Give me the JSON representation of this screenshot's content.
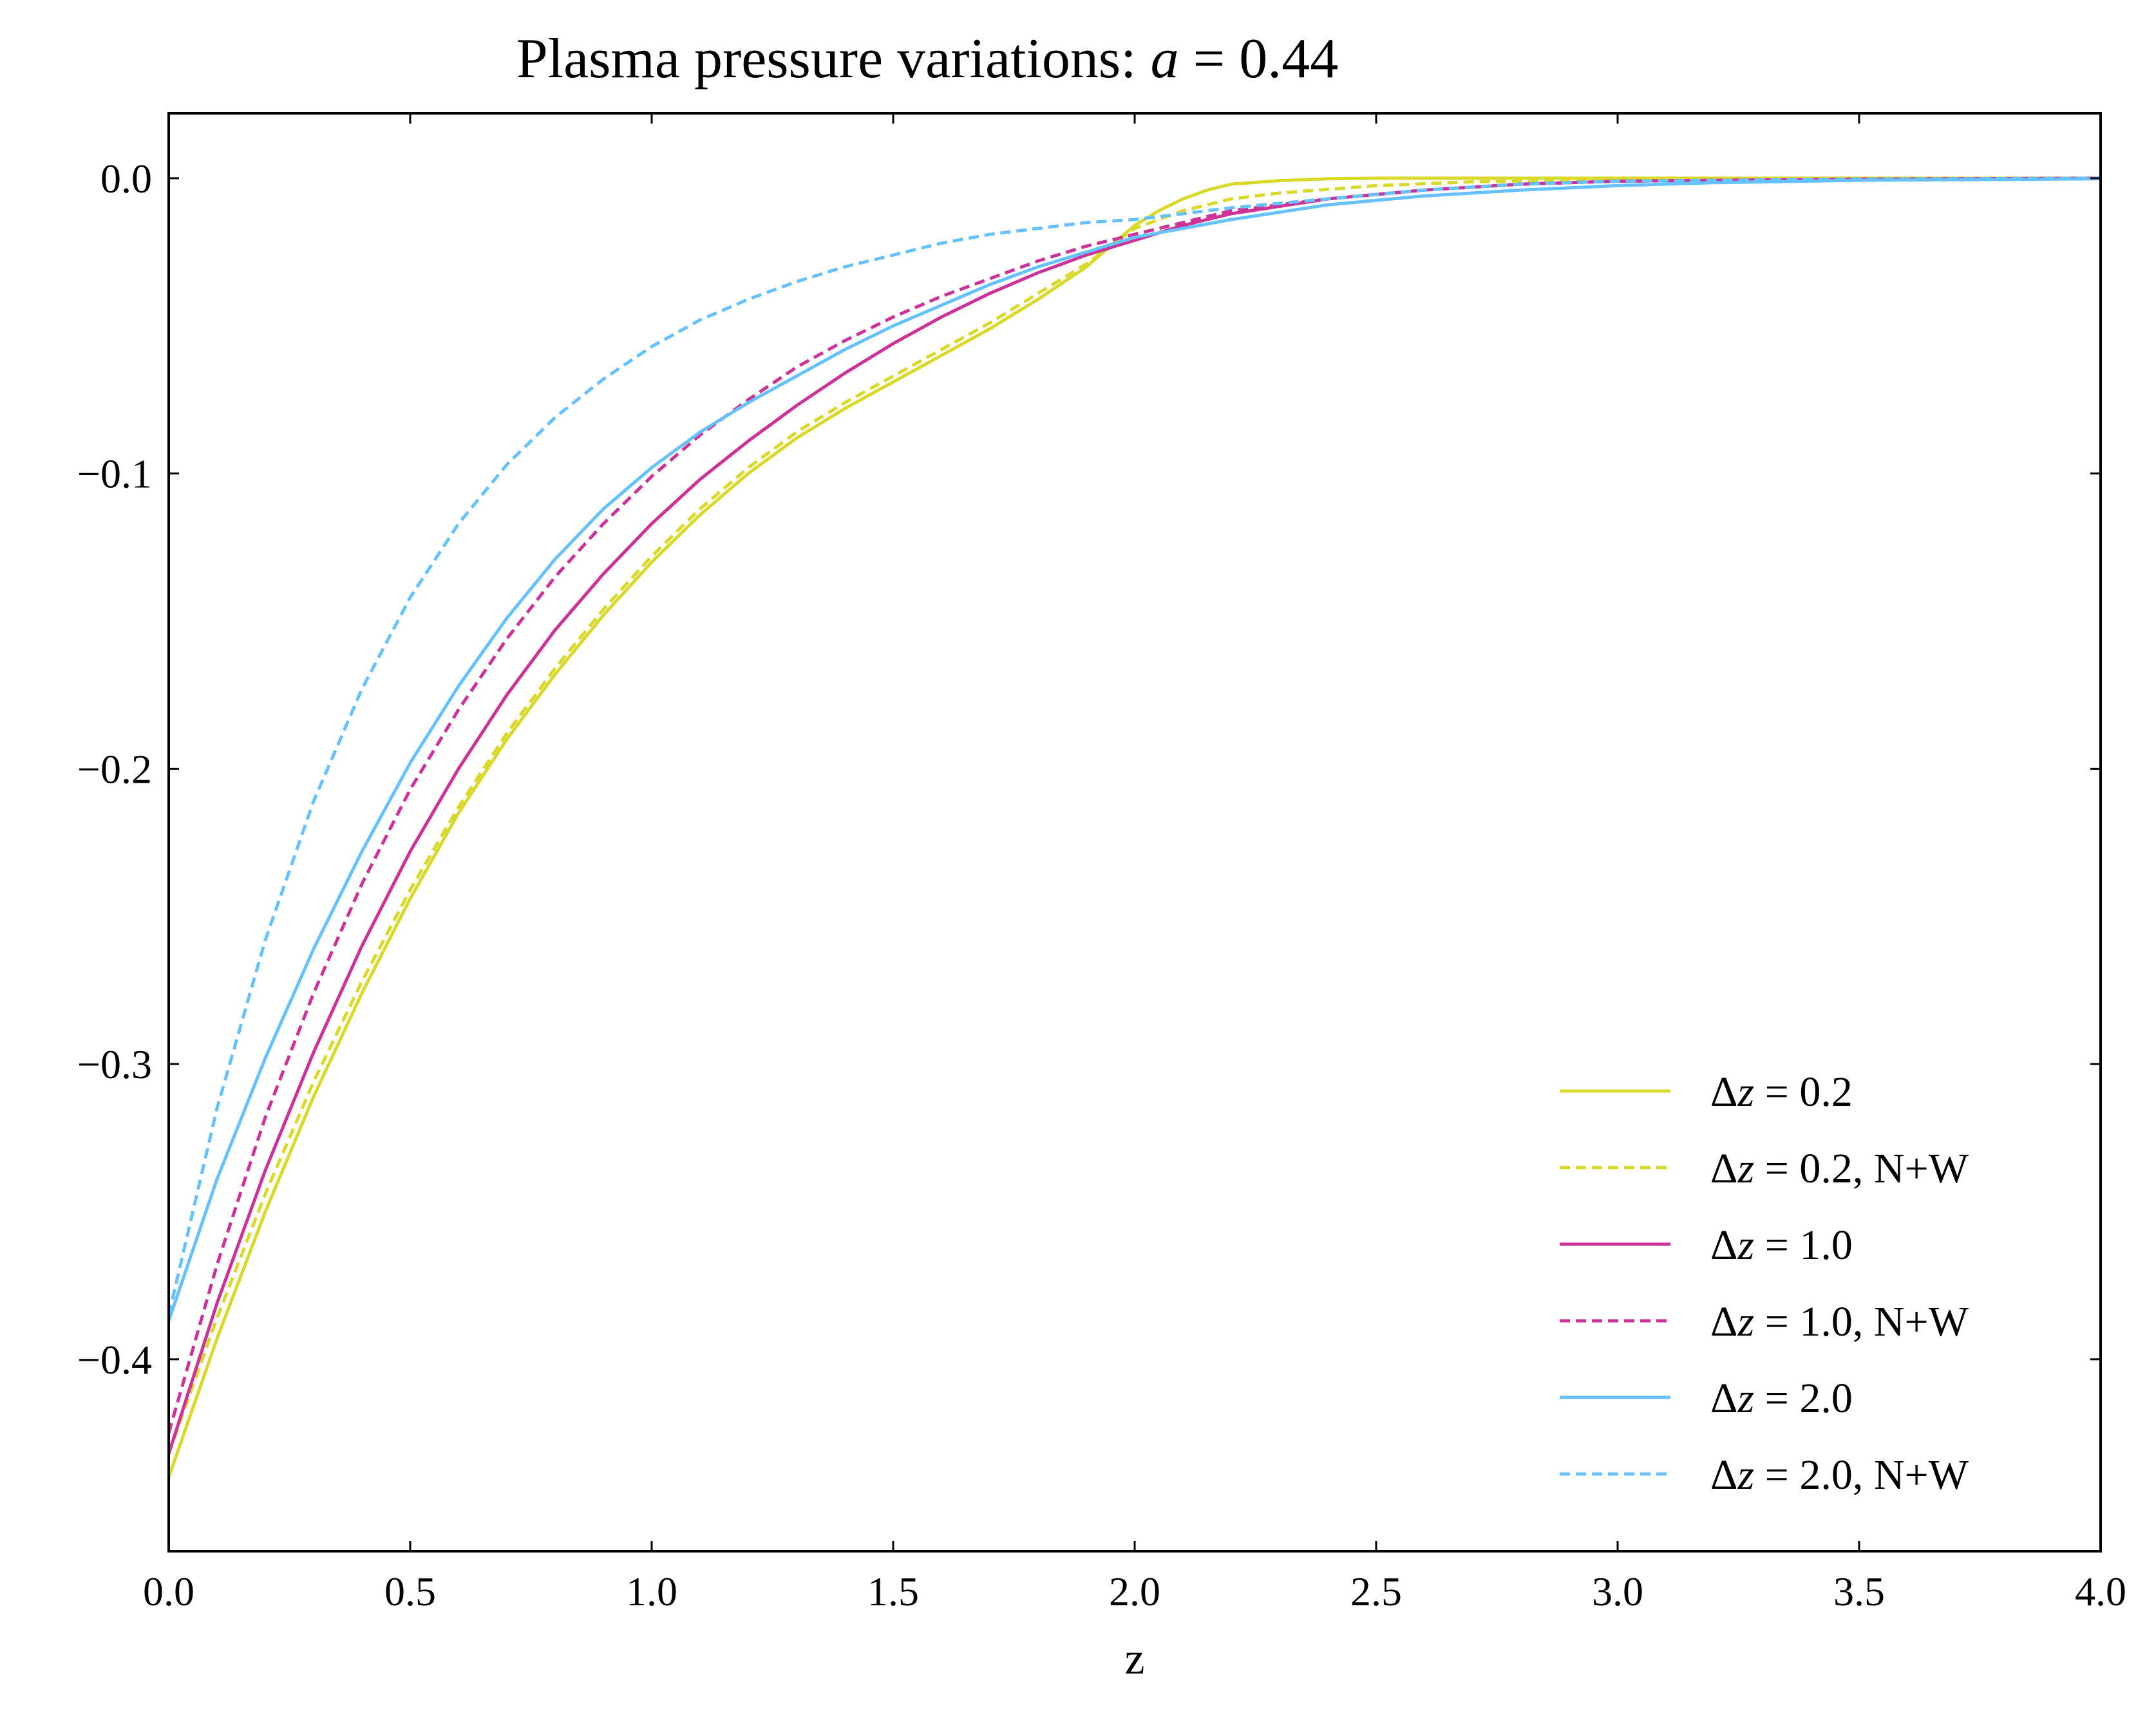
{
  "chart_data": {
    "type": "line",
    "title": "Plasma pressure variations: a = 0.44",
    "title_parts": {
      "prefix": "Plasma pressure variations: ",
      "var": "a",
      "suffix": " = 0.44"
    },
    "xlabel": "z",
    "ylabel": "",
    "xlim": [
      0.0,
      4.0
    ],
    "ylim": [
      -0.465,
      0.022
    ],
    "xticks": [
      0.0,
      0.5,
      1.0,
      1.5,
      2.0,
      2.5,
      3.0,
      3.5,
      4.0
    ],
    "xtick_labels": [
      "0.0",
      "0.5",
      "1.0",
      "1.5",
      "2.0",
      "2.5",
      "3.0",
      "3.5",
      "4.0"
    ],
    "yticks": [
      0.0,
      -0.1,
      -0.2,
      -0.3,
      -0.4
    ],
    "ytick_labels": [
      "0.0",
      "−0.1",
      "−0.2",
      "−0.3",
      "−0.4"
    ],
    "grid": false,
    "legend_position": "bottom-right",
    "series": [
      {
        "name": "Δz = 0.2",
        "name_parts": {
          "var": "z",
          "suffix": " = 0.2"
        },
        "color": "#d9d92b",
        "dash": "solid",
        "x": [
          0.0,
          0.1,
          0.2,
          0.3,
          0.4,
          0.5,
          0.6,
          0.7,
          0.8,
          0.9,
          1.0,
          1.1,
          1.2,
          1.3,
          1.4,
          1.5,
          1.6,
          1.7,
          1.8,
          1.9,
          2.0,
          2.05,
          2.1,
          2.15,
          2.2,
          2.3,
          2.4,
          2.5,
          2.6,
          2.8,
          3.0,
          3.5,
          4.0
        ],
        "y": [
          -0.44,
          -0.393,
          -0.35,
          -0.311,
          -0.276,
          -0.244,
          -0.215,
          -0.19,
          -0.168,
          -0.148,
          -0.13,
          -0.114,
          -0.1,
          -0.088,
          -0.078,
          -0.069,
          -0.06,
          -0.051,
          -0.041,
          -0.03,
          -0.016,
          -0.011,
          -0.007,
          -0.004,
          -0.002,
          -0.0008,
          -0.0002,
          0.0,
          0.0,
          0.0,
          0.0,
          0.0,
          0.0
        ]
      },
      {
        "name": "Δz = 0.2, N+W",
        "name_parts": {
          "var": "z",
          "suffix": " = 0.2, N+W"
        },
        "color": "#d9d92b",
        "dash": "dashed",
        "x": [
          0.0,
          0.1,
          0.2,
          0.3,
          0.4,
          0.5,
          0.6,
          0.7,
          0.8,
          0.9,
          1.0,
          1.1,
          1.2,
          1.3,
          1.4,
          1.5,
          1.6,
          1.7,
          1.8,
          1.9,
          2.0,
          2.1,
          2.2,
          2.3,
          2.5,
          2.7,
          3.0,
          3.5,
          4.0
        ],
        "y": [
          -0.432,
          -0.386,
          -0.344,
          -0.306,
          -0.272,
          -0.241,
          -0.213,
          -0.188,
          -0.166,
          -0.146,
          -0.128,
          -0.112,
          -0.098,
          -0.086,
          -0.076,
          -0.067,
          -0.058,
          -0.049,
          -0.039,
          -0.029,
          -0.017,
          -0.011,
          -0.007,
          -0.005,
          -0.0025,
          -0.0012,
          -0.0005,
          -0.0001,
          0.0
        ]
      },
      {
        "name": "Δz = 1.0",
        "name_parts": {
          "var": "z",
          "suffix": " = 1.0"
        },
        "color": "#cc3399",
        "dash": "solid",
        "x": [
          0.0,
          0.1,
          0.2,
          0.3,
          0.4,
          0.5,
          0.6,
          0.7,
          0.8,
          0.9,
          1.0,
          1.1,
          1.2,
          1.3,
          1.4,
          1.5,
          1.6,
          1.7,
          1.8,
          1.9,
          2.0,
          2.1,
          2.2,
          2.4,
          2.6,
          2.8,
          3.0,
          3.5,
          4.0
        ],
        "y": [
          -0.432,
          -0.381,
          -0.336,
          -0.296,
          -0.26,
          -0.228,
          -0.2,
          -0.175,
          -0.153,
          -0.134,
          -0.117,
          -0.102,
          -0.089,
          -0.077,
          -0.066,
          -0.056,
          -0.047,
          -0.039,
          -0.032,
          -0.026,
          -0.021,
          -0.016,
          -0.012,
          -0.007,
          -0.004,
          -0.002,
          -0.001,
          -0.0003,
          0.0
        ]
      },
      {
        "name": "Δz = 1.0, N+W",
        "name_parts": {
          "var": "z",
          "suffix": " = 1.0, N+W"
        },
        "color": "#cc3399",
        "dash": "dashed",
        "x": [
          0.0,
          0.1,
          0.2,
          0.3,
          0.4,
          0.5,
          0.6,
          0.7,
          0.8,
          0.9,
          1.0,
          1.1,
          1.2,
          1.3,
          1.4,
          1.5,
          1.6,
          1.7,
          1.8,
          1.9,
          2.0,
          2.1,
          2.2,
          2.4,
          2.6,
          2.8,
          3.0,
          3.5,
          4.0
        ],
        "y": [
          -0.425,
          -0.368,
          -0.318,
          -0.276,
          -0.239,
          -0.207,
          -0.18,
          -0.156,
          -0.135,
          -0.117,
          -0.101,
          -0.087,
          -0.075,
          -0.064,
          -0.055,
          -0.047,
          -0.04,
          -0.034,
          -0.028,
          -0.023,
          -0.019,
          -0.015,
          -0.011,
          -0.007,
          -0.004,
          -0.002,
          -0.001,
          -0.0003,
          0.0
        ]
      },
      {
        "name": "Δz = 2.0",
        "name_parts": {
          "var": "z",
          "suffix": " = 2.0"
        },
        "color": "#66c2ff",
        "dash": "solid",
        "x": [
          0.0,
          0.1,
          0.2,
          0.3,
          0.4,
          0.5,
          0.6,
          0.7,
          0.8,
          0.9,
          1.0,
          1.1,
          1.2,
          1.3,
          1.4,
          1.5,
          1.6,
          1.7,
          1.8,
          1.9,
          2.0,
          2.2,
          2.4,
          2.6,
          2.8,
          3.0,
          3.2,
          3.5,
          4.0
        ],
        "y": [
          -0.387,
          -0.339,
          -0.298,
          -0.261,
          -0.228,
          -0.198,
          -0.172,
          -0.149,
          -0.129,
          -0.112,
          -0.098,
          -0.086,
          -0.076,
          -0.067,
          -0.058,
          -0.05,
          -0.043,
          -0.036,
          -0.03,
          -0.025,
          -0.02,
          -0.014,
          -0.009,
          -0.006,
          -0.004,
          -0.0025,
          -0.0015,
          -0.0007,
          -0.0002
        ]
      },
      {
        "name": "Δz = 2.0, N+W",
        "name_parts": {
          "var": "z",
          "suffix": " = 2.0, N+W"
        },
        "color": "#66c2ff",
        "dash": "dashed",
        "x": [
          0.0,
          0.1,
          0.2,
          0.3,
          0.4,
          0.5,
          0.6,
          0.7,
          0.8,
          0.9,
          1.0,
          1.1,
          1.2,
          1.3,
          1.4,
          1.5,
          1.6,
          1.7,
          1.8,
          1.9,
          2.0,
          2.1,
          2.2,
          2.4,
          2.6,
          2.8,
          3.0,
          3.5,
          4.0
        ],
        "y": [
          -0.385,
          -0.315,
          -0.258,
          -0.211,
          -0.173,
          -0.142,
          -0.117,
          -0.097,
          -0.081,
          -0.068,
          -0.057,
          -0.048,
          -0.041,
          -0.035,
          -0.03,
          -0.026,
          -0.022,
          -0.019,
          -0.017,
          -0.015,
          -0.014,
          -0.012,
          -0.01,
          -0.007,
          -0.004,
          -0.002,
          -0.001,
          -0.0003,
          0.0
        ]
      }
    ]
  }
}
